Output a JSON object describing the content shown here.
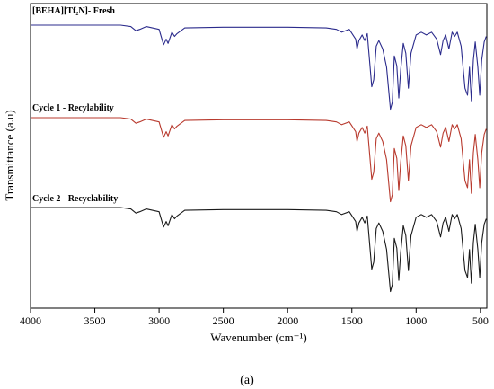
{
  "chart_data": {
    "type": "line",
    "title": "",
    "xlabel": "Wavenumber (cm⁻¹)",
    "ylabel": "Transmittance (a.u)",
    "xlim": [
      4000,
      450
    ],
    "x_reversed": true,
    "x_ticks": [
      "4000",
      "3500",
      "3000",
      "2500",
      "2000",
      "1500",
      "1000",
      "500"
    ],
    "y_ticks_shown": false,
    "grid": false,
    "panel_label": "(a)",
    "series": [
      {
        "name": "[BEHA][Tf₂N]- Fresh",
        "color": "#2b2b8c",
        "baseline": 0,
        "points": [
          [
            4000,
            0
          ],
          [
            3300,
            0
          ],
          [
            3220,
            -2
          ],
          [
            3180,
            -8
          ],
          [
            3150,
            -6
          ],
          [
            3100,
            -2
          ],
          [
            3000,
            -6
          ],
          [
            2965,
            -28
          ],
          [
            2945,
            -20
          ],
          [
            2930,
            -26
          ],
          [
            2900,
            -10
          ],
          [
            2880,
            -16
          ],
          [
            2860,
            -12
          ],
          [
            2800,
            -4
          ],
          [
            2500,
            -3
          ],
          [
            2200,
            -3
          ],
          [
            2000,
            -3
          ],
          [
            1700,
            -4
          ],
          [
            1620,
            -6
          ],
          [
            1580,
            -10
          ],
          [
            1520,
            -6
          ],
          [
            1470,
            -20
          ],
          [
            1460,
            -34
          ],
          [
            1445,
            -22
          ],
          [
            1420,
            -14
          ],
          [
            1400,
            -22
          ],
          [
            1380,
            -12
          ],
          [
            1360,
            -56
          ],
          [
            1345,
            -88
          ],
          [
            1330,
            -78
          ],
          [
            1310,
            -30
          ],
          [
            1290,
            -22
          ],
          [
            1260,
            -34
          ],
          [
            1230,
            -60
          ],
          [
            1200,
            -120
          ],
          [
            1185,
            -110
          ],
          [
            1170,
            -44
          ],
          [
            1150,
            -58
          ],
          [
            1135,
            -104
          ],
          [
            1120,
            -64
          ],
          [
            1100,
            -26
          ],
          [
            1080,
            -40
          ],
          [
            1060,
            -90
          ],
          [
            1040,
            -40
          ],
          [
            1000,
            -14
          ],
          [
            960,
            -10
          ],
          [
            920,
            -14
          ],
          [
            880,
            -10
          ],
          [
            840,
            -20
          ],
          [
            810,
            -42
          ],
          [
            790,
            -22
          ],
          [
            770,
            -14
          ],
          [
            745,
            -34
          ],
          [
            720,
            -10
          ],
          [
            700,
            -16
          ],
          [
            680,
            -10
          ],
          [
            650,
            -30
          ],
          [
            620,
            -90
          ],
          [
            600,
            -100
          ],
          [
            585,
            -60
          ],
          [
            570,
            -108
          ],
          [
            555,
            -50
          ],
          [
            540,
            -24
          ],
          [
            520,
            -60
          ],
          [
            505,
            -100
          ],
          [
            490,
            -50
          ],
          [
            470,
            -24
          ],
          [
            455,
            -16
          ]
        ]
      },
      {
        "name": "Cycle 1 - Recylability",
        "color": "#b83a2e",
        "baseline": 0,
        "points": [
          [
            4000,
            0
          ],
          [
            3300,
            0
          ],
          [
            3220,
            -2
          ],
          [
            3180,
            -8
          ],
          [
            3150,
            -6
          ],
          [
            3100,
            -2
          ],
          [
            3000,
            -6
          ],
          [
            2965,
            -28
          ],
          [
            2945,
            -20
          ],
          [
            2930,
            -26
          ],
          [
            2900,
            -10
          ],
          [
            2880,
            -16
          ],
          [
            2860,
            -12
          ],
          [
            2800,
            -4
          ],
          [
            2500,
            -3
          ],
          [
            2200,
            -3
          ],
          [
            2000,
            -3
          ],
          [
            1700,
            -4
          ],
          [
            1620,
            -6
          ],
          [
            1580,
            -10
          ],
          [
            1520,
            -6
          ],
          [
            1470,
            -20
          ],
          [
            1460,
            -34
          ],
          [
            1445,
            -22
          ],
          [
            1420,
            -14
          ],
          [
            1400,
            -22
          ],
          [
            1380,
            -12
          ],
          [
            1360,
            -56
          ],
          [
            1345,
            -88
          ],
          [
            1330,
            -78
          ],
          [
            1310,
            -30
          ],
          [
            1290,
            -22
          ],
          [
            1260,
            -34
          ],
          [
            1230,
            -60
          ],
          [
            1200,
            -120
          ],
          [
            1185,
            -110
          ],
          [
            1170,
            -44
          ],
          [
            1150,
            -58
          ],
          [
            1135,
            -104
          ],
          [
            1120,
            -64
          ],
          [
            1100,
            -26
          ],
          [
            1080,
            -40
          ],
          [
            1060,
            -90
          ],
          [
            1040,
            -40
          ],
          [
            1000,
            -14
          ],
          [
            960,
            -10
          ],
          [
            920,
            -14
          ],
          [
            880,
            -10
          ],
          [
            840,
            -20
          ],
          [
            810,
            -42
          ],
          [
            790,
            -22
          ],
          [
            770,
            -14
          ],
          [
            745,
            -34
          ],
          [
            720,
            -10
          ],
          [
            700,
            -16
          ],
          [
            680,
            -10
          ],
          [
            650,
            -30
          ],
          [
            620,
            -90
          ],
          [
            600,
            -100
          ],
          [
            585,
            -60
          ],
          [
            570,
            -108
          ],
          [
            555,
            -50
          ],
          [
            540,
            -24
          ],
          [
            520,
            -60
          ],
          [
            505,
            -100
          ],
          [
            490,
            -50
          ],
          [
            470,
            -24
          ],
          [
            455,
            -16
          ]
        ]
      },
      {
        "name": "Cycle 2 - Recyclability",
        "color": "#1a1a1a",
        "baseline": 0,
        "points": [
          [
            4000,
            0
          ],
          [
            3300,
            0
          ],
          [
            3220,
            -2
          ],
          [
            3180,
            -8
          ],
          [
            3150,
            -6
          ],
          [
            3100,
            -2
          ],
          [
            3000,
            -6
          ],
          [
            2965,
            -28
          ],
          [
            2945,
            -20
          ],
          [
            2930,
            -26
          ],
          [
            2900,
            -10
          ],
          [
            2880,
            -16
          ],
          [
            2860,
            -12
          ],
          [
            2800,
            -4
          ],
          [
            2500,
            -3
          ],
          [
            2200,
            -3
          ],
          [
            2000,
            -3
          ],
          [
            1700,
            -4
          ],
          [
            1620,
            -6
          ],
          [
            1580,
            -10
          ],
          [
            1520,
            -6
          ],
          [
            1470,
            -20
          ],
          [
            1460,
            -34
          ],
          [
            1445,
            -22
          ],
          [
            1420,
            -14
          ],
          [
            1400,
            -22
          ],
          [
            1380,
            -12
          ],
          [
            1360,
            -56
          ],
          [
            1345,
            -88
          ],
          [
            1330,
            -78
          ],
          [
            1310,
            -30
          ],
          [
            1290,
            -22
          ],
          [
            1260,
            -34
          ],
          [
            1230,
            -60
          ],
          [
            1200,
            -120
          ],
          [
            1185,
            -110
          ],
          [
            1170,
            -44
          ],
          [
            1150,
            -58
          ],
          [
            1135,
            -104
          ],
          [
            1120,
            -64
          ],
          [
            1100,
            -26
          ],
          [
            1080,
            -40
          ],
          [
            1060,
            -90
          ],
          [
            1040,
            -40
          ],
          [
            1000,
            -14
          ],
          [
            960,
            -10
          ],
          [
            920,
            -14
          ],
          [
            880,
            -10
          ],
          [
            840,
            -20
          ],
          [
            810,
            -42
          ],
          [
            790,
            -22
          ],
          [
            770,
            -14
          ],
          [
            745,
            -34
          ],
          [
            720,
            -10
          ],
          [
            700,
            -16
          ],
          [
            680,
            -10
          ],
          [
            650,
            -30
          ],
          [
            620,
            -90
          ],
          [
            600,
            -100
          ],
          [
            585,
            -60
          ],
          [
            570,
            -108
          ],
          [
            555,
            -50
          ],
          [
            540,
            -24
          ],
          [
            520,
            -60
          ],
          [
            505,
            -100
          ],
          [
            490,
            -50
          ],
          [
            470,
            -24
          ],
          [
            455,
            -16
          ]
        ]
      }
    ]
  }
}
